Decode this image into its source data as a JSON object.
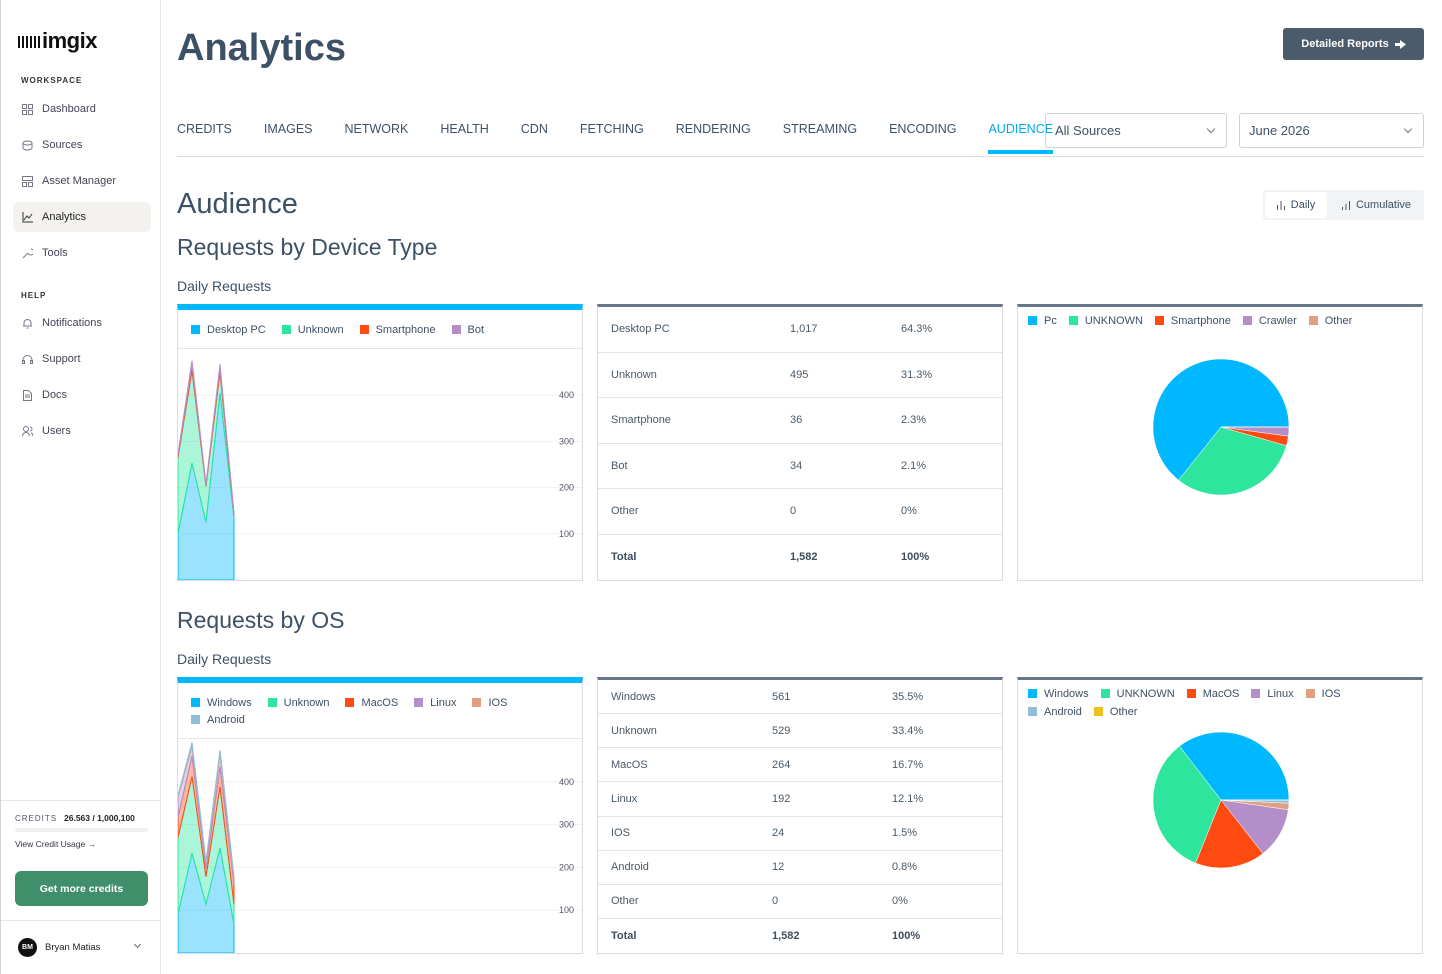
{
  "sidebar": {
    "logo": "imgix",
    "workspace_heading": "WORKSPACE",
    "workspace_items": [
      "Dashboard",
      "Sources",
      "Asset Manager",
      "Analytics",
      "Tools"
    ],
    "help_heading": "HELP",
    "help_items": [
      "Notifications",
      "Support",
      "Docs",
      "Users"
    ],
    "credits_label": "CREDITS",
    "credits_value": "26.563 / 1,000,100",
    "credits_link": "View Credit Usage →",
    "credits_button": "Get more credits",
    "user_initials": "BM",
    "user_name": "Bryan Matias"
  },
  "header": {
    "title": "Analytics",
    "button": "Detailed Reports"
  },
  "tabs": [
    "CREDITS",
    "IMAGES",
    "NETWORK",
    "HEALTH",
    "CDN",
    "FETCHING",
    "RENDERING",
    "STREAMING",
    "ENCODING",
    "AUDIENCE"
  ],
  "filters": {
    "source": "All Sources",
    "month": "June 2026"
  },
  "section_title": "Audience",
  "toggle": {
    "daily": "Daily",
    "cumulative": "Cumulative"
  },
  "sections": [
    {
      "title": "Requests by Device Type",
      "subtitle": "Daily Requests"
    },
    {
      "title": "Requests by OS",
      "subtitle": "Daily Requests"
    }
  ],
  "tables": [
    {
      "rows": [
        [
          "Desktop PC",
          "1,017",
          "64.3%"
        ],
        [
          "Unknown",
          "495",
          "31.3%"
        ],
        [
          "Smartphone",
          "36",
          "2.3%"
        ],
        [
          "Bot",
          "34",
          "2.1%"
        ],
        [
          "Other",
          "0",
          "0%"
        ]
      ],
      "total": [
        "Total",
        "1,582",
        "100%"
      ]
    },
    {
      "rows": [
        [
          "Windows",
          "561",
          "35.5%"
        ],
        [
          "Unknown",
          "529",
          "33.4%"
        ],
        [
          "MacOS",
          "264",
          "16.7%"
        ],
        [
          "Linux",
          "192",
          "12.1%"
        ],
        [
          "IOS",
          "24",
          "1.5%"
        ],
        [
          "Android",
          "12",
          "0.8%"
        ],
        [
          "Other",
          "0",
          "0%"
        ]
      ],
      "total": [
        "Total",
        "1,582",
        "100%"
      ]
    }
  ],
  "chart_data": [
    {
      "type": "area",
      "stacked": true,
      "ylim": [
        0,
        500
      ],
      "yticks": [
        100,
        200,
        300,
        400
      ],
      "series": [
        {
          "name": "Desktop PC",
          "color": "#00b8ff",
          "values": [
            100,
            253,
            125,
            404,
            135
          ]
        },
        {
          "name": "Unknown",
          "color": "#2ee59d",
          "values": [
            165,
            200,
            78,
            45,
            5
          ]
        },
        {
          "name": "Smartphone",
          "color": "#ff4b12",
          "values": [
            5,
            12,
            3,
            10,
            2
          ]
        },
        {
          "name": "Bot",
          "color": "#b48ec8",
          "values": [
            3,
            10,
            2,
            8,
            2
          ]
        }
      ]
    },
    {
      "type": "pie",
      "categories": [
        "Pc",
        "UNKNOWN",
        "Smartphone",
        "Crawler",
        "Other"
      ],
      "colors": [
        "#00b8ff",
        "#2ee59d",
        "#ff4b12",
        "#b48ec8",
        "#e0a080"
      ],
      "values": [
        1017,
        495,
        36,
        34,
        0
      ]
    },
    {
      "type": "area",
      "stacked": true,
      "ylim": [
        0,
        500
      ],
      "yticks": [
        100,
        200,
        300,
        400
      ],
      "series": [
        {
          "name": "Windows",
          "color": "#00b8ff",
          "values": [
            90,
            233,
            114,
            245,
            67
          ]
        },
        {
          "name": "Unknown",
          "color": "#2ee59d",
          "values": [
            180,
            179,
            64,
            143,
            47
          ]
        },
        {
          "name": "MacOS",
          "color": "#ff4b12",
          "values": [
            47,
            48,
            20,
            48,
            48
          ]
        },
        {
          "name": "Linux",
          "color": "#b48ec8",
          "values": [
            47,
            23,
            12,
            31,
            12
          ]
        },
        {
          "name": "IOS",
          "color": "#e0a080",
          "values": [
            3,
            5,
            2,
            4,
            2
          ]
        },
        {
          "name": "Android",
          "color": "#8fbfd8",
          "values": [
            2,
            4,
            1,
            3,
            1
          ]
        }
      ]
    },
    {
      "type": "pie",
      "categories": [
        "Windows",
        "UNKNOWN",
        "MacOS",
        "Linux",
        "IOS",
        "Android",
        "Other"
      ],
      "colors": [
        "#00b8ff",
        "#2ee59d",
        "#ff4b12",
        "#b48ec8",
        "#e0a080",
        "#8fbfd8",
        "#f0c020"
      ],
      "values": [
        561,
        529,
        264,
        192,
        24,
        12,
        0
      ]
    }
  ]
}
